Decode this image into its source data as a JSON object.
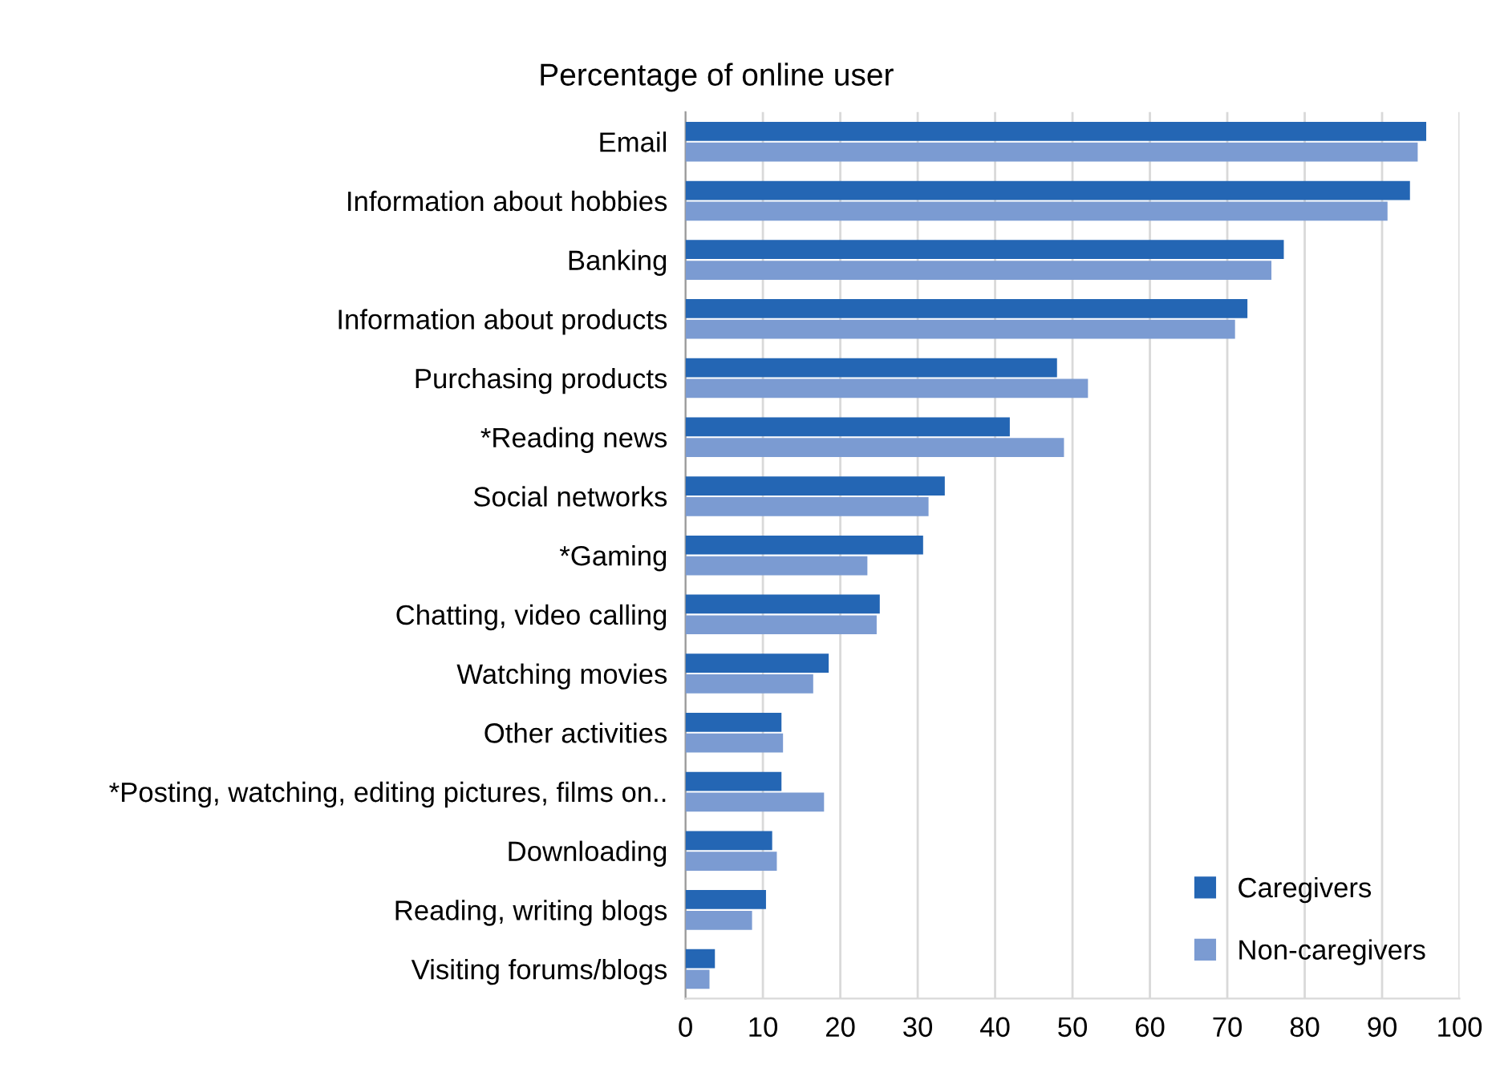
{
  "chart_data": {
    "type": "bar",
    "orientation": "horizontal",
    "title": "Percentage of online user",
    "categories": [
      "Email",
      "Information about hobbies",
      "Banking",
      "Information about products",
      "Purchasing products",
      "*Reading news",
      "Social networks",
      "*Gaming",
      "Chatting, video calling",
      "Watching movies",
      "Other activities",
      "*Posting, watching, editing pictures, films on..",
      "Downloading",
      "Reading, writing blogs",
      "Visiting forums/blogs"
    ],
    "series": [
      {
        "name": "Caregivers",
        "color": "#2466b4",
        "values": [
          95.7,
          93.6,
          77.3,
          72.6,
          48.0,
          41.9,
          33.5,
          30.7,
          25.1,
          18.5,
          12.4,
          12.4,
          11.2,
          10.4,
          3.8
        ]
      },
      {
        "name": "Non-caregivers",
        "color": "#7b9bd2",
        "values": [
          94.6,
          90.7,
          75.7,
          71.0,
          52.0,
          48.9,
          31.4,
          23.5,
          24.7,
          16.5,
          12.6,
          17.9,
          11.8,
          8.6,
          3.1
        ]
      }
    ],
    "xlim": [
      0,
      100
    ],
    "xticks": [
      0,
      10,
      20,
      30,
      40,
      50,
      60,
      70,
      80,
      90,
      100
    ],
    "grid": "x",
    "legend": "bottom right"
  }
}
